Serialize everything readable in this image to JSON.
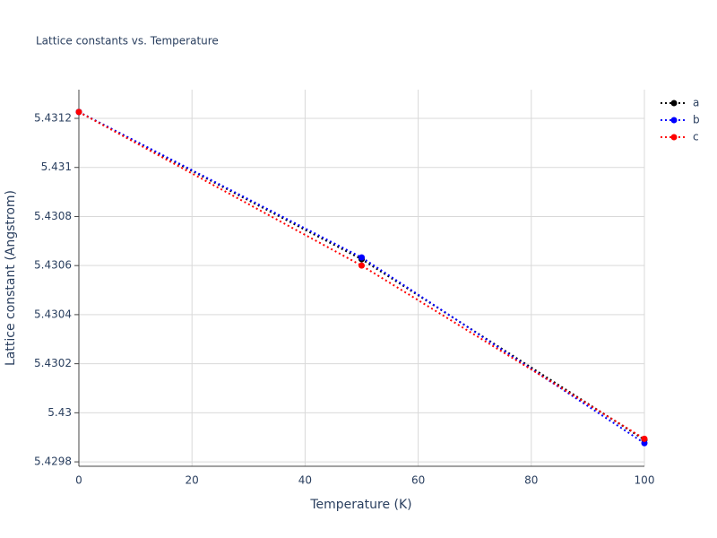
{
  "chart_data": {
    "type": "line",
    "title": "Lattice constants vs. Temperature",
    "x_label": "Temperature (K)",
    "y_label": "Lattice constant (Angstrom)",
    "x": [
      0,
      50,
      100
    ],
    "series": [
      {
        "name": "a",
        "color": "#000000",
        "values": [
          5.431226,
          5.430626,
          5.42989
        ]
      },
      {
        "name": "b",
        "color": "#0000ff",
        "values": [
          5.431226,
          5.430633,
          5.429876
        ]
      },
      {
        "name": "c",
        "color": "#ff0000",
        "values": [
          5.431226,
          5.4306,
          5.429894
        ]
      }
    ],
    "xlim": [
      0,
      100
    ],
    "xticks": [
      0,
      20,
      40,
      60,
      80,
      100
    ],
    "ylim": [
      5.429782,
      5.431317
    ],
    "yticks": [
      5.4298,
      5.43,
      5.4302,
      5.4304,
      5.4306,
      5.4308,
      5.431,
      5.4312
    ],
    "grid": true,
    "legend": "top-right"
  }
}
